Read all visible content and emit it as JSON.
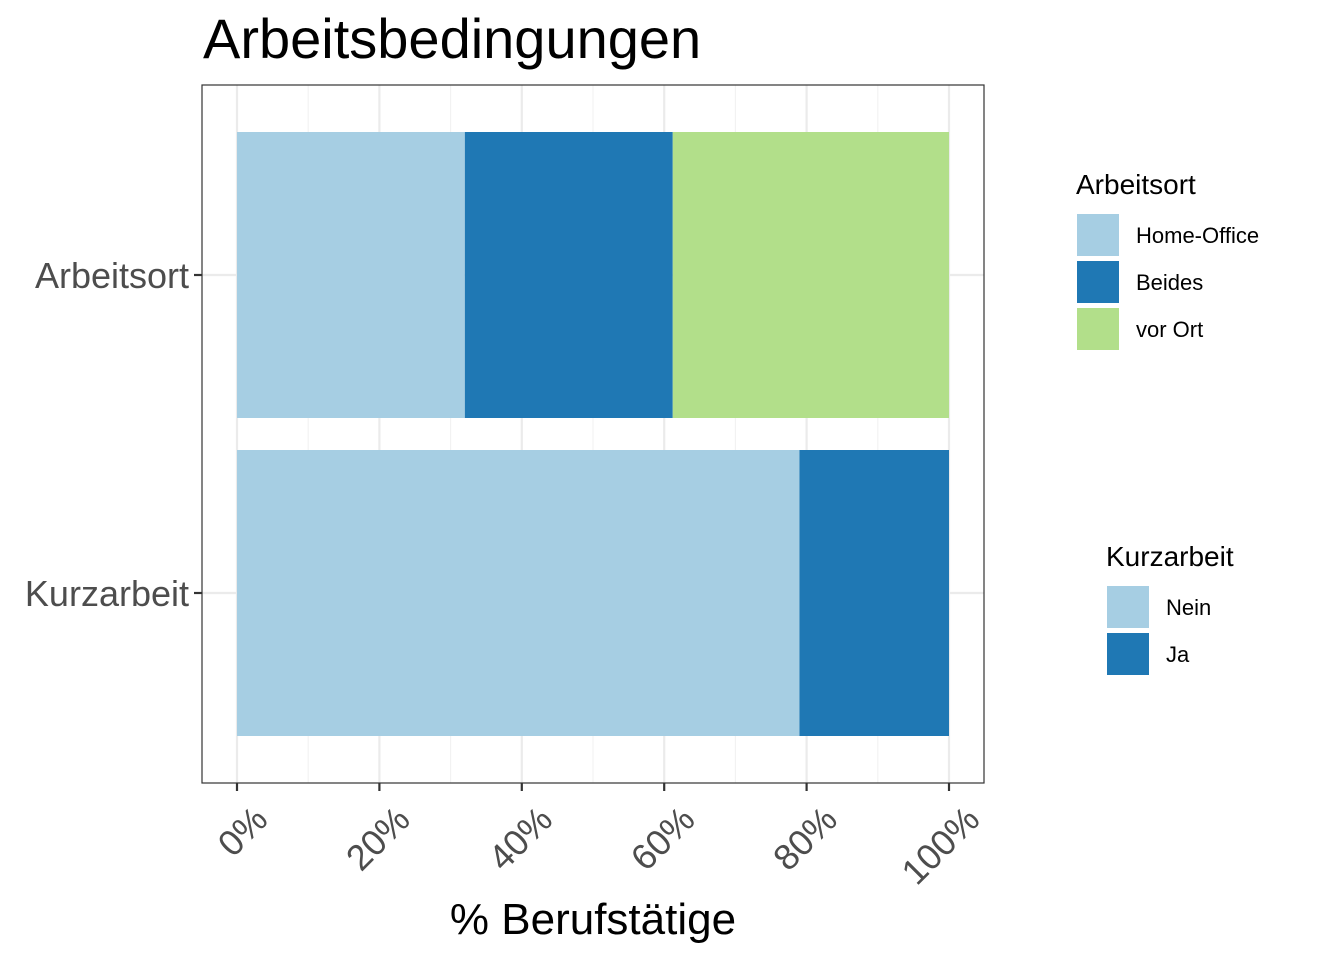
{
  "chart_data": {
    "type": "bar",
    "orientation": "horizontal",
    "stacked": true,
    "title": "Arbeitsbedingungen",
    "xlabel": "% Berufstätige",
    "ylabel": "",
    "xlim": [
      0,
      100
    ],
    "x_ticks": [
      "0%",
      "20%",
      "40%",
      "60%",
      "80%",
      "100%"
    ],
    "x_tick_values": [
      0,
      20,
      40,
      60,
      80,
      100
    ],
    "grid": true,
    "categories": [
      "Arbeitsort",
      "Kurzarbeit"
    ],
    "bars": [
      {
        "category": "Arbeitsort",
        "legend": "Arbeitsort",
        "segments": [
          {
            "name": "Home-Office",
            "value": 32,
            "color": "#a6cee3"
          },
          {
            "name": "Beides",
            "value": 29.2,
            "color": "#1f78b4"
          },
          {
            "name": "vor Ort",
            "value": 38.8,
            "color": "#b2df8a"
          }
        ]
      },
      {
        "category": "Kurzarbeit",
        "legend": "Kurzarbeit",
        "segments": [
          {
            "name": "Nein",
            "value": 79,
            "color": "#a6cee3"
          },
          {
            "name": "Ja",
            "value": 21,
            "color": "#1f78b4"
          }
        ]
      }
    ],
    "legends": [
      {
        "title": "Arbeitsort",
        "placement": "right",
        "items": [
          {
            "label": "Home-Office",
            "color": "#a6cee3"
          },
          {
            "label": "Beides",
            "color": "#1f78b4"
          },
          {
            "label": "vor Ort",
            "color": "#b2df8a"
          }
        ]
      },
      {
        "title": "Kurzarbeit",
        "placement": "right",
        "items": [
          {
            "label": "Nein",
            "color": "#a6cee3"
          },
          {
            "label": "Ja",
            "color": "#1f78b4"
          }
        ]
      }
    ]
  }
}
